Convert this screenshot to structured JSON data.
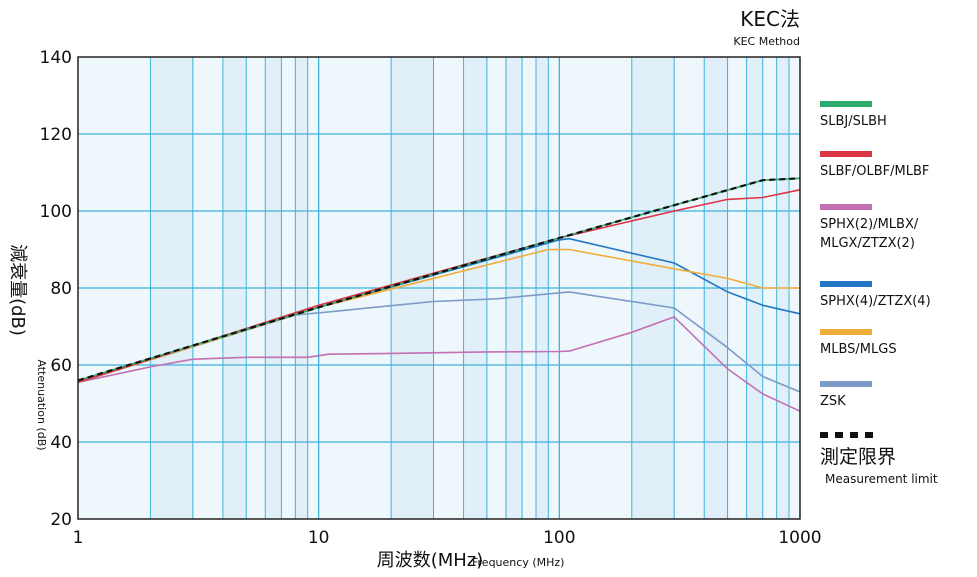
{
  "chart_data": {
    "type": "line",
    "title": "KEC法",
    "subtitle": "KEC Method",
    "xlabel": "周波数(MHz)",
    "xlabel_en": "Frequency (MHz)",
    "ylabel": "減衰量(dB)",
    "ylabel_en": "Attenuation (dB)",
    "x_scale": "log",
    "xlim": [
      1,
      1000
    ],
    "ylim": [
      20,
      140
    ],
    "x_ticks": [
      "1",
      "10",
      "100",
      "1000"
    ],
    "y_ticks": [
      "20",
      "40",
      "60",
      "80",
      "100",
      "120",
      "140"
    ],
    "grid": true,
    "legend_position": "right",
    "series": [
      {
        "name": "SLBJ/SLBH",
        "color": "#2eaa6e",
        "label_lines": [
          "SLBJ/SLBH"
        ],
        "x": [
          1,
          10,
          100,
          300,
          700,
          1000
        ],
        "y": [
          56,
          75,
          93,
          101.5,
          108,
          108.5
        ]
      },
      {
        "name": "SLBF/OLBF/MLBF",
        "color": "#dc3545",
        "label_lines": [
          "SLBF/OLBF/MLBF"
        ],
        "x": [
          1,
          10,
          100,
          300,
          500,
          700,
          1000
        ],
        "y": [
          55.5,
          75.5,
          93,
          100,
          103,
          103.5,
          105.5
        ]
      },
      {
        "name": "SPHX(2)/MLBX/MLGX/ZTZX(2)",
        "color": "#c370b5",
        "label_lines": [
          "SPHX(2)/MLBX/",
          "MLGX/ZTZX(2)"
        ],
        "x": [
          1,
          2,
          3,
          5,
          9,
          11,
          20,
          50,
          100,
          110,
          200,
          300,
          500,
          700,
          1000
        ],
        "y": [
          55.5,
          59.5,
          61.5,
          62,
          62,
          62.8,
          63,
          63.4,
          63.5,
          63.6,
          68.5,
          72.5,
          59,
          52.5,
          48
        ]
      },
      {
        "name": "SPHX(4)/ZTZX(4)",
        "color": "#2277c4",
        "label_lines": [
          "SPHX(4)/ZTZX(4)"
        ],
        "x": [
          1,
          10,
          100,
          110,
          300,
          500,
          700,
          1000
        ],
        "y": [
          55.5,
          75,
          92.5,
          92.8,
          86.5,
          79,
          75.5,
          73.3
        ]
      },
      {
        "name": "MLBS/MLGS",
        "color": "#f0ad3a",
        "label_lines": [
          "MLBS/MLGS"
        ],
        "x": [
          1,
          10,
          90,
          110,
          300,
          500,
          700,
          1000
        ],
        "y": [
          55.5,
          75,
          90,
          90,
          85,
          82.5,
          80,
          80
        ]
      },
      {
        "name": "ZSK",
        "color": "#7c9bc6",
        "label_lines": [
          "ZSK"
        ],
        "x": [
          1,
          8,
          11,
          30,
          55,
          110,
          300,
          500,
          700,
          1000
        ],
        "y": [
          55.5,
          73,
          73.8,
          76.5,
          77.2,
          79,
          74.8,
          64.5,
          57,
          53
        ]
      }
    ],
    "limit": {
      "name": "測定限界",
      "name_en": "Measurement limit",
      "color": "#111111",
      "x": [
        1,
        10,
        100,
        300,
        700,
        1000
      ],
      "y": [
        56,
        75,
        93,
        101.5,
        108,
        108.5
      ]
    }
  }
}
